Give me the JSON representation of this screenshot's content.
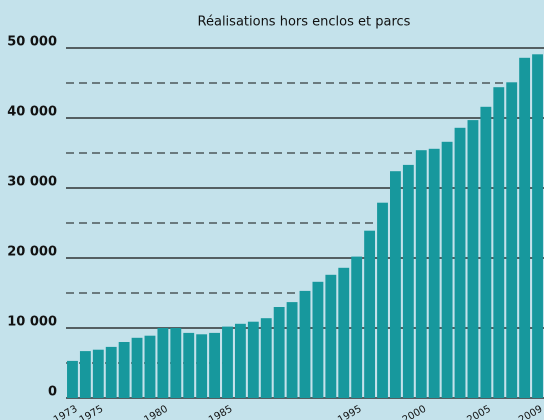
{
  "chart_data": {
    "type": "bar",
    "title": "Réalisations hors enclos et parcs",
    "categories": [
      "1973",
      null,
      "1975",
      null,
      null,
      null,
      null,
      "1980",
      null,
      null,
      null,
      null,
      "1985",
      null,
      null,
      null,
      null,
      null,
      null,
      null,
      null,
      null,
      "1995",
      null,
      null,
      null,
      null,
      "2000",
      null,
      null,
      null,
      null,
      "2005",
      null,
      null,
      null,
      "2009"
    ],
    "values": [
      5300,
      6700,
      6900,
      7300,
      8000,
      8600,
      8900,
      10000,
      10000,
      9300,
      9100,
      9300,
      10200,
      10600,
      10900,
      11400,
      13000,
      13700,
      15300,
      16600,
      17600,
      18600,
      20200,
      23900,
      27900,
      32400,
      33300,
      35400,
      35600,
      36600,
      38600,
      39700,
      41600,
      44400,
      45100,
      48600,
      49100
    ],
    "color": "#17989d",
    "ylim": [
      0,
      50000
    ],
    "yticks": [
      {
        "value": 0,
        "label": "0"
      },
      {
        "value": 10000,
        "label": "10 000"
      },
      {
        "value": 20000,
        "label": "20 000"
      },
      {
        "value": 30000,
        "label": "30 000"
      },
      {
        "value": 40000,
        "label": "40 000"
      },
      {
        "value": 50000,
        "label": "50 000"
      }
    ],
    "yminorticks": [
      5000,
      15000,
      25000,
      35000,
      45000
    ],
    "grid": true
  }
}
